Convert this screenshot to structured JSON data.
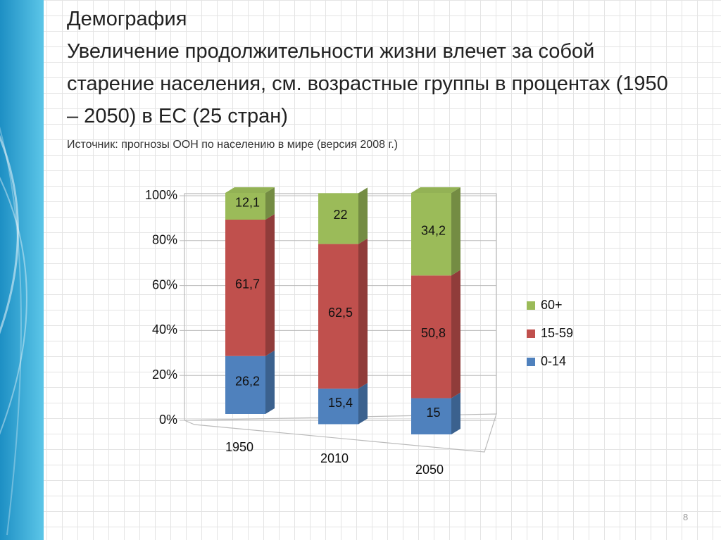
{
  "heading": "Демография",
  "title": "Увеличение продолжительности жизни влечет за собой старение населения, см. возрастные группы в процентах (1950 – 2050) в ЕС (25 стран)",
  "source": "Источник: прогнозы ООН по населению в мире (версия 2008 г.)",
  "page_number": "8",
  "chart_data": {
    "type": "stacked_bar_3d",
    "categories": [
      "1950",
      "2010",
      "2050"
    ],
    "series": [
      {
        "name": "0-14",
        "color": "#4f81bd",
        "values": [
          26.2,
          15.4,
          15
        ],
        "value_labels": [
          "26,2",
          "15,4",
          "15"
        ]
      },
      {
        "name": "15-59",
        "color": "#c0504d",
        "values": [
          61.7,
          62.5,
          50.8
        ],
        "value_labels": [
          "61,7",
          "62,5",
          "50,8"
        ]
      },
      {
        "name": "60+",
        "color": "#9bbb59",
        "values": [
          12.1,
          22,
          34.2
        ],
        "value_labels": [
          "12,1",
          "22",
          "34,2"
        ]
      }
    ],
    "ylim": [
      0,
      100
    ],
    "yticks": [
      {
        "value": 0,
        "label": "0%"
      },
      {
        "value": 20,
        "label": "20%"
      },
      {
        "value": 40,
        "label": "40%"
      },
      {
        "value": 60,
        "label": "60%"
      },
      {
        "value": 80,
        "label": "80%"
      },
      {
        "value": 100,
        "label": "100%"
      }
    ],
    "grid": true,
    "legend": "right"
  }
}
